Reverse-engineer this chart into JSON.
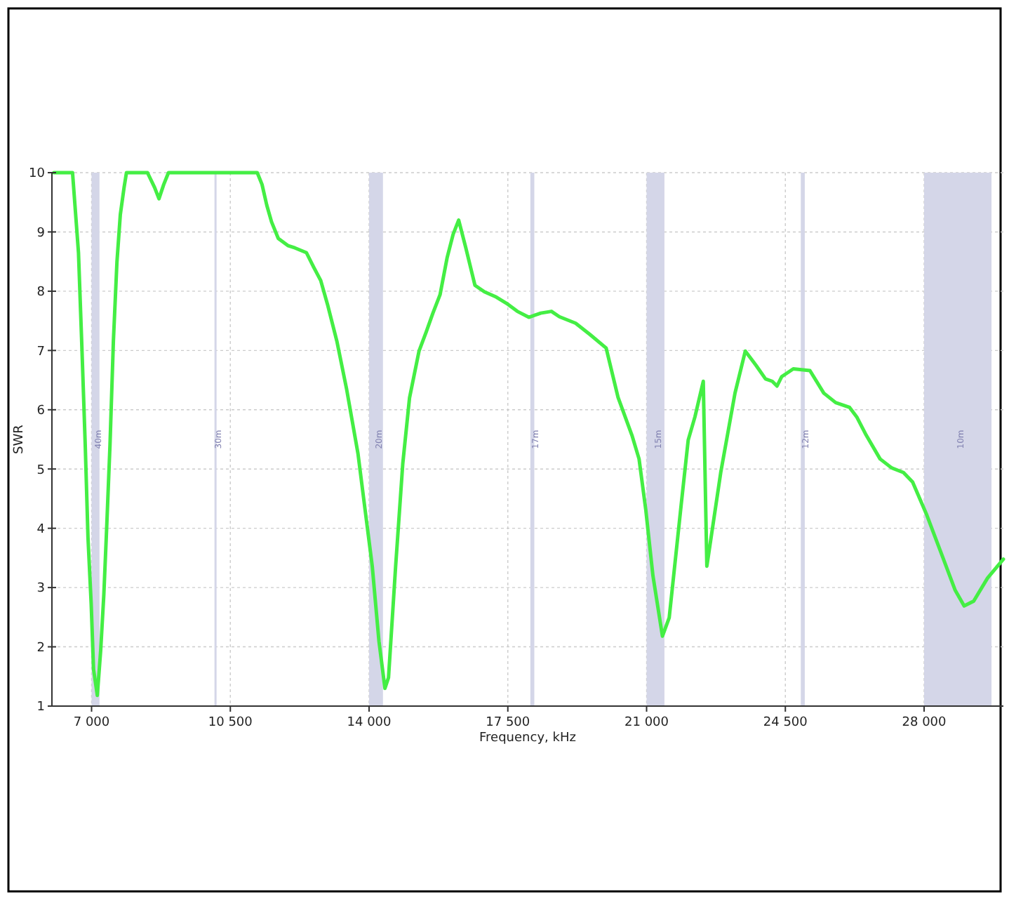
{
  "chart_data": {
    "type": "line",
    "xlabel": "Frequency, kHz",
    "ylabel": "SWR",
    "xlim": [
      6000,
      30000
    ],
    "ylim": [
      1,
      10
    ],
    "xticks": [
      {
        "value": 7000,
        "label": "7 000"
      },
      {
        "value": 10500,
        "label": "10 500"
      },
      {
        "value": 14000,
        "label": "14 000"
      },
      {
        "value": 17500,
        "label": "17 500"
      },
      {
        "value": 21000,
        "label": "21 000"
      },
      {
        "value": 24500,
        "label": "24 500"
      },
      {
        "value": 28000,
        "label": "28 000"
      }
    ],
    "yticks": [
      1,
      2,
      3,
      4,
      5,
      6,
      7,
      8,
      9,
      10
    ],
    "grid": true,
    "marker": "none",
    "line_style": "solid",
    "bands": [
      {
        "axis": "x",
        "from": 7000,
        "to": 7200,
        "label": "40m",
        "color": "#d4d6e8"
      },
      {
        "axis": "x",
        "from": 10100,
        "to": 10150,
        "label": "30m",
        "color": "#d4d6e8"
      },
      {
        "axis": "x",
        "from": 14000,
        "to": 14350,
        "label": "20m",
        "color": "#d4d6e8"
      },
      {
        "axis": "x",
        "from": 18068,
        "to": 18168,
        "label": "17m",
        "color": "#d4d6e8"
      },
      {
        "axis": "x",
        "from": 21000,
        "to": 21450,
        "label": "15m",
        "color": "#d4d6e8"
      },
      {
        "axis": "x",
        "from": 24890,
        "to": 24990,
        "label": "12m",
        "color": "#d4d6e8"
      },
      {
        "axis": "x",
        "from": 28000,
        "to": 29700,
        "label": "10m",
        "color": "#d4d6e8"
      }
    ],
    "series": [
      {
        "color": "#44ee44",
        "x": [
          6050,
          6520,
          6670,
          6755,
          6840,
          6910,
          6990,
          7050,
          7145,
          7230,
          7310,
          7380,
          7465,
          7550,
          7640,
          7725,
          7820,
          7880,
          8410,
          8590,
          8700,
          8820,
          8940,
          11180,
          11300,
          11420,
          11540,
          11710,
          11950,
          12130,
          12420,
          12600,
          12780,
          12950,
          13190,
          13430,
          13720,
          13900,
          14080,
          14250,
          14400,
          14490,
          14670,
          14850,
          15020,
          15260,
          15440,
          15610,
          15790,
          15970,
          16120,
          16260,
          16440,
          16670,
          16910,
          17210,
          17500,
          17740,
          18030,
          18330,
          18600,
          18800,
          19210,
          19570,
          19980,
          20280,
          20630,
          20810,
          20980,
          21160,
          21400,
          21570,
          21870,
          22050,
          22220,
          22430,
          22520,
          22870,
          23230,
          23490,
          23760,
          24000,
          24170,
          24290,
          24410,
          24590,
          24700,
          25120,
          25470,
          25770,
          26120,
          26300,
          26540,
          26890,
          27180,
          27480,
          27710,
          28070,
          28420,
          28780,
          29010,
          29250,
          29600,
          30000
        ],
        "values": [
          10,
          10,
          8.65,
          7.07,
          5.41,
          3.84,
          2.73,
          1.62,
          1.18,
          1.94,
          2.89,
          3.99,
          5.41,
          7.15,
          8.49,
          9.29,
          9.75,
          10,
          10,
          9.75,
          9.56,
          9.8,
          10,
          10,
          9.8,
          9.45,
          9.17,
          8.89,
          8.77,
          8.73,
          8.65,
          8.41,
          8.18,
          7.78,
          7.15,
          6.36,
          5.26,
          4.31,
          3.36,
          2.09,
          1.3,
          1.48,
          3.36,
          5.09,
          6.2,
          6.99,
          7.31,
          7.63,
          7.94,
          8.57,
          8.96,
          9.2,
          8.73,
          8.1,
          7.99,
          7.9,
          7.78,
          7.66,
          7.56,
          7.63,
          7.66,
          7.57,
          7.46,
          7.27,
          7.04,
          6.21,
          5.57,
          5.17,
          4.31,
          3.2,
          2.18,
          2.49,
          4.38,
          5.49,
          5.88,
          6.48,
          3.36,
          4.94,
          6.28,
          6.99,
          6.75,
          6.52,
          6.48,
          6.4,
          6.56,
          6.64,
          6.69,
          6.66,
          6.28,
          6.12,
          6.04,
          5.88,
          5.57,
          5.17,
          5.02,
          4.94,
          4.78,
          4.22,
          3.6,
          2.96,
          2.69,
          2.77,
          3.16,
          3.48
        ]
      }
    ]
  }
}
